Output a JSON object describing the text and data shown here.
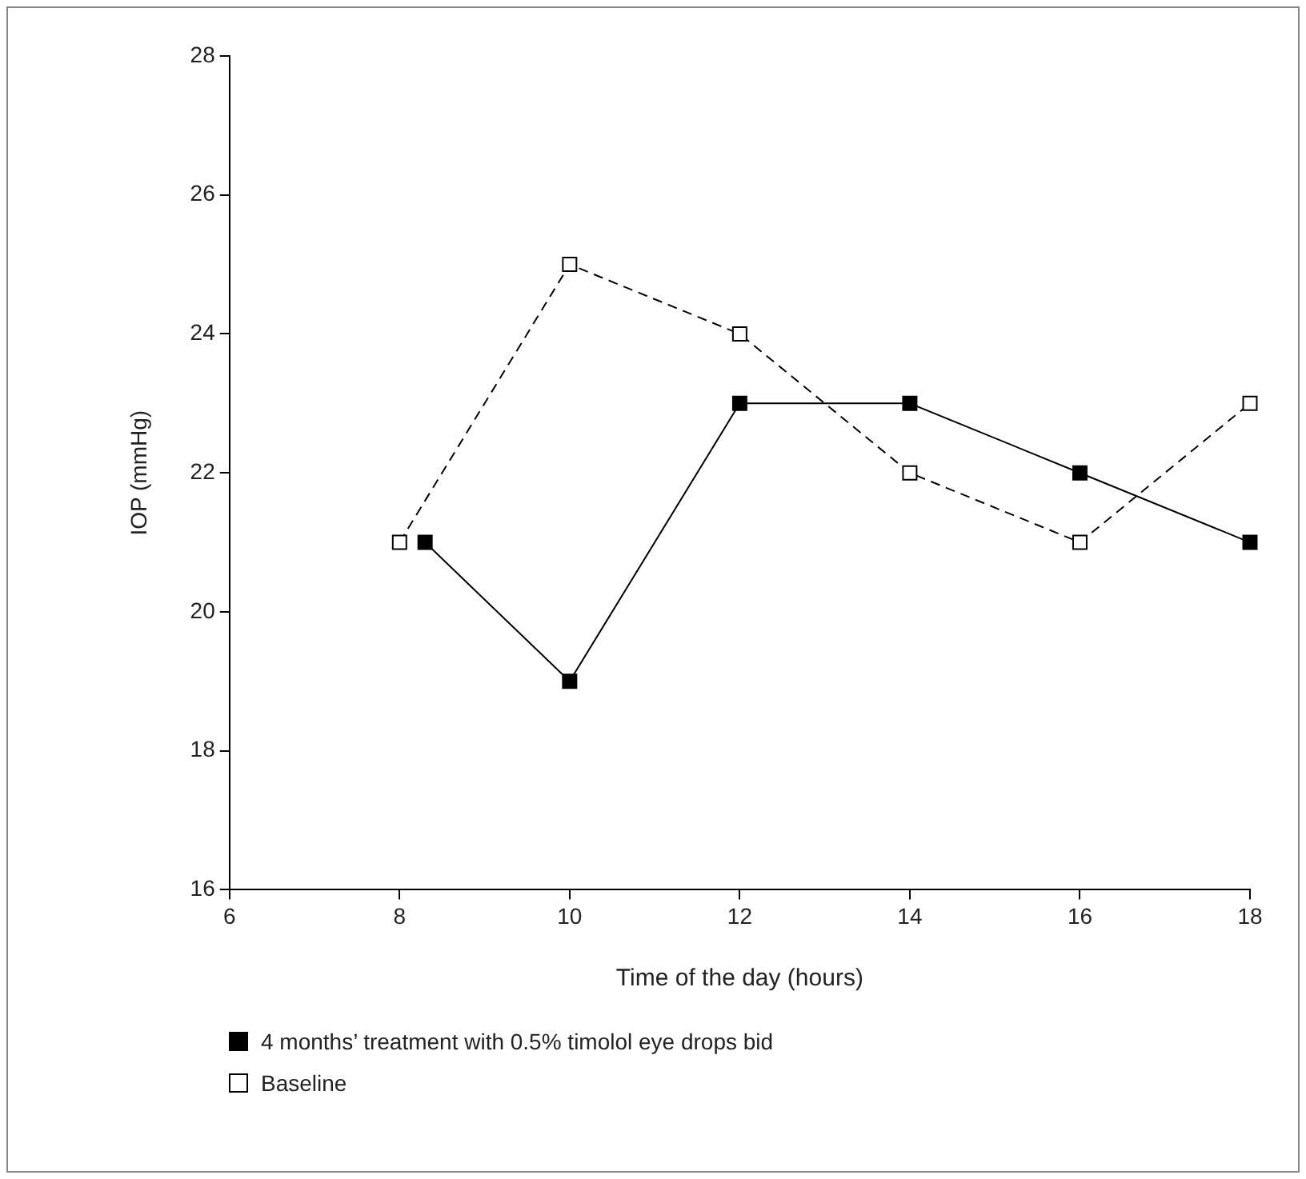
{
  "chart_data": {
    "type": "line",
    "xlabel": "Time of the day (hours)",
    "ylabel": "IOP (mmHg)",
    "xlim": [
      6,
      18
    ],
    "xticks": [
      6,
      8,
      10,
      12,
      14,
      16,
      18
    ],
    "ylim": [
      16,
      28
    ],
    "yticks": [
      16,
      18,
      20,
      22,
      24,
      26,
      28
    ],
    "grid": false,
    "legend": "bottom",
    "marker": "square",
    "series": [
      {
        "name": "4 months’ treatment with 0.5% timolol eye drops bid",
        "color": "#000000",
        "line_style": "solid",
        "x": [
          8.3,
          10,
          12,
          14,
          16,
          18
        ],
        "values": [
          21,
          19,
          23,
          23,
          22,
          21
        ]
      },
      {
        "name": "Baseline",
        "color": "#ffffff",
        "line_style": "dashed",
        "x": [
          8,
          10,
          12,
          14,
          16,
          18
        ],
        "values": [
          21,
          25,
          24,
          22,
          21,
          23
        ]
      }
    ]
  }
}
